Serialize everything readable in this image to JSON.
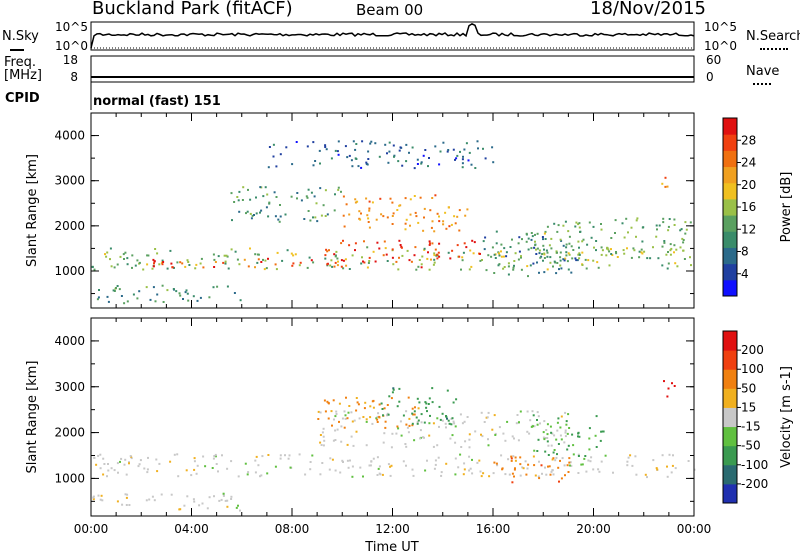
{
  "header": {
    "title_left": "Buckland Park (fitACF)",
    "title_center": "Beam 00",
    "title_right": "18/Nov/2015"
  },
  "noise_panel": {
    "left_label": "N.Sky",
    "right_label": "N.Search",
    "left_ticks": [
      "10^5",
      "10^0"
    ],
    "right_ticks": [
      "10^5",
      "10^0"
    ]
  },
  "freq_panel": {
    "left_label_1": "Freq.",
    "left_label_2": "[MHz]",
    "right_label": "Nave",
    "left_ticks": [
      "18",
      "8"
    ],
    "right_ticks": [
      "60",
      "0"
    ]
  },
  "cpid_panel": {
    "label": "CPID",
    "text": "normal (fast) 151"
  },
  "chart_data": [
    {
      "type": "heatmap",
      "name": "power",
      "xlabel": "",
      "ylabel": "Slant Range [km]",
      "x_ticks": [
        "00:00",
        "04:00",
        "08:00",
        "12:00",
        "16:00",
        "20:00",
        "00:00"
      ],
      "y_ticks": [
        "1000",
        "2000",
        "3000",
        "4000"
      ],
      "ylim": [
        180,
        4500
      ],
      "colorbar": {
        "label": "Power [dB]",
        "ticks": [
          "4",
          "8",
          "12",
          "16",
          "20",
          "24",
          "28"
        ],
        "colors": [
          "#1010ff",
          "#2040a0",
          "#2b6a8a",
          "#3a8c6a",
          "#5aa060",
          "#9ac048",
          "#f0c020",
          "#f0a020",
          "#f07010",
          "#f04010",
          "#e01010"
        ]
      },
      "regions": [
        {
          "t0": 0.0,
          "t1": 24.0,
          "r0": 1050,
          "r1": 1550,
          "level": 15
        },
        {
          "t0": 2.0,
          "t1": 14.0,
          "r0": 1100,
          "r1": 1300,
          "level": 26
        },
        {
          "t0": 9.0,
          "t1": 15.5,
          "r0": 1300,
          "r1": 1700,
          "level": 27
        },
        {
          "t0": 10.0,
          "t1": 15.0,
          "r0": 1900,
          "r1": 2700,
          "level": 22
        },
        {
          "t0": 5.5,
          "t1": 10.0,
          "r0": 2100,
          "r1": 2900,
          "level": 12
        },
        {
          "t0": 15.5,
          "t1": 19.5,
          "r0": 900,
          "r1": 1900,
          "level": 10
        },
        {
          "t0": 17.5,
          "t1": 24.0,
          "r0": 1300,
          "r1": 2200,
          "level": 14
        },
        {
          "t0": 0.0,
          "t1": 6.0,
          "r0": 300,
          "r1": 700,
          "level": 12
        },
        {
          "t0": 22.5,
          "t1": 23.2,
          "r0": 2800,
          "r1": 3100,
          "level": 22
        },
        {
          "t0": 7.0,
          "t1": 16.0,
          "r0": 3300,
          "r1": 3900,
          "level": 8
        }
      ]
    },
    {
      "type": "heatmap",
      "name": "velocity",
      "xlabel": "Time UT",
      "ylabel": "Slant Range [km]",
      "x_ticks": [
        "00:00",
        "04:00",
        "08:00",
        "12:00",
        "16:00",
        "20:00",
        "00:00"
      ],
      "y_ticks": [
        "1000",
        "2000",
        "3000",
        "4000"
      ],
      "ylim": [
        180,
        4500
      ],
      "colorbar": {
        "label": "Velocity [m s-1]",
        "ticks": [
          "200",
          "100",
          "50",
          "15",
          "-15",
          "-50",
          "-100",
          "-200"
        ],
        "colors": [
          "#2030b0",
          "#2a6a70",
          "#3a9a50",
          "#60c040",
          "#c8c8c8",
          "#f0b020",
          "#f08010",
          "#f04010",
          "#e01010"
        ]
      },
      "regions": [
        {
          "t0": 0.0,
          "t1": 24.0,
          "r0": 1050,
          "r1": 1550,
          "level": 0
        },
        {
          "t0": 9.0,
          "t1": 19.0,
          "r0": 1700,
          "r1": 2500,
          "level": 0
        },
        {
          "t0": 9.0,
          "t1": 13.0,
          "r0": 2100,
          "r1": 2800,
          "level": -40
        },
        {
          "t0": 11.5,
          "t1": 14.5,
          "r0": 2200,
          "r1": 3000,
          "level": 60
        },
        {
          "t0": 16.0,
          "t1": 19.0,
          "r0": 900,
          "r1": 1500,
          "level": -60
        },
        {
          "t0": 17.5,
          "t1": 20.5,
          "r0": 1500,
          "r1": 2400,
          "level": 40
        },
        {
          "t0": 0.0,
          "t1": 6.0,
          "r0": 300,
          "r1": 700,
          "level": 0
        },
        {
          "t0": 22.5,
          "t1": 23.2,
          "r0": 2800,
          "r1": 3200,
          "level": -220
        }
      ]
    }
  ]
}
